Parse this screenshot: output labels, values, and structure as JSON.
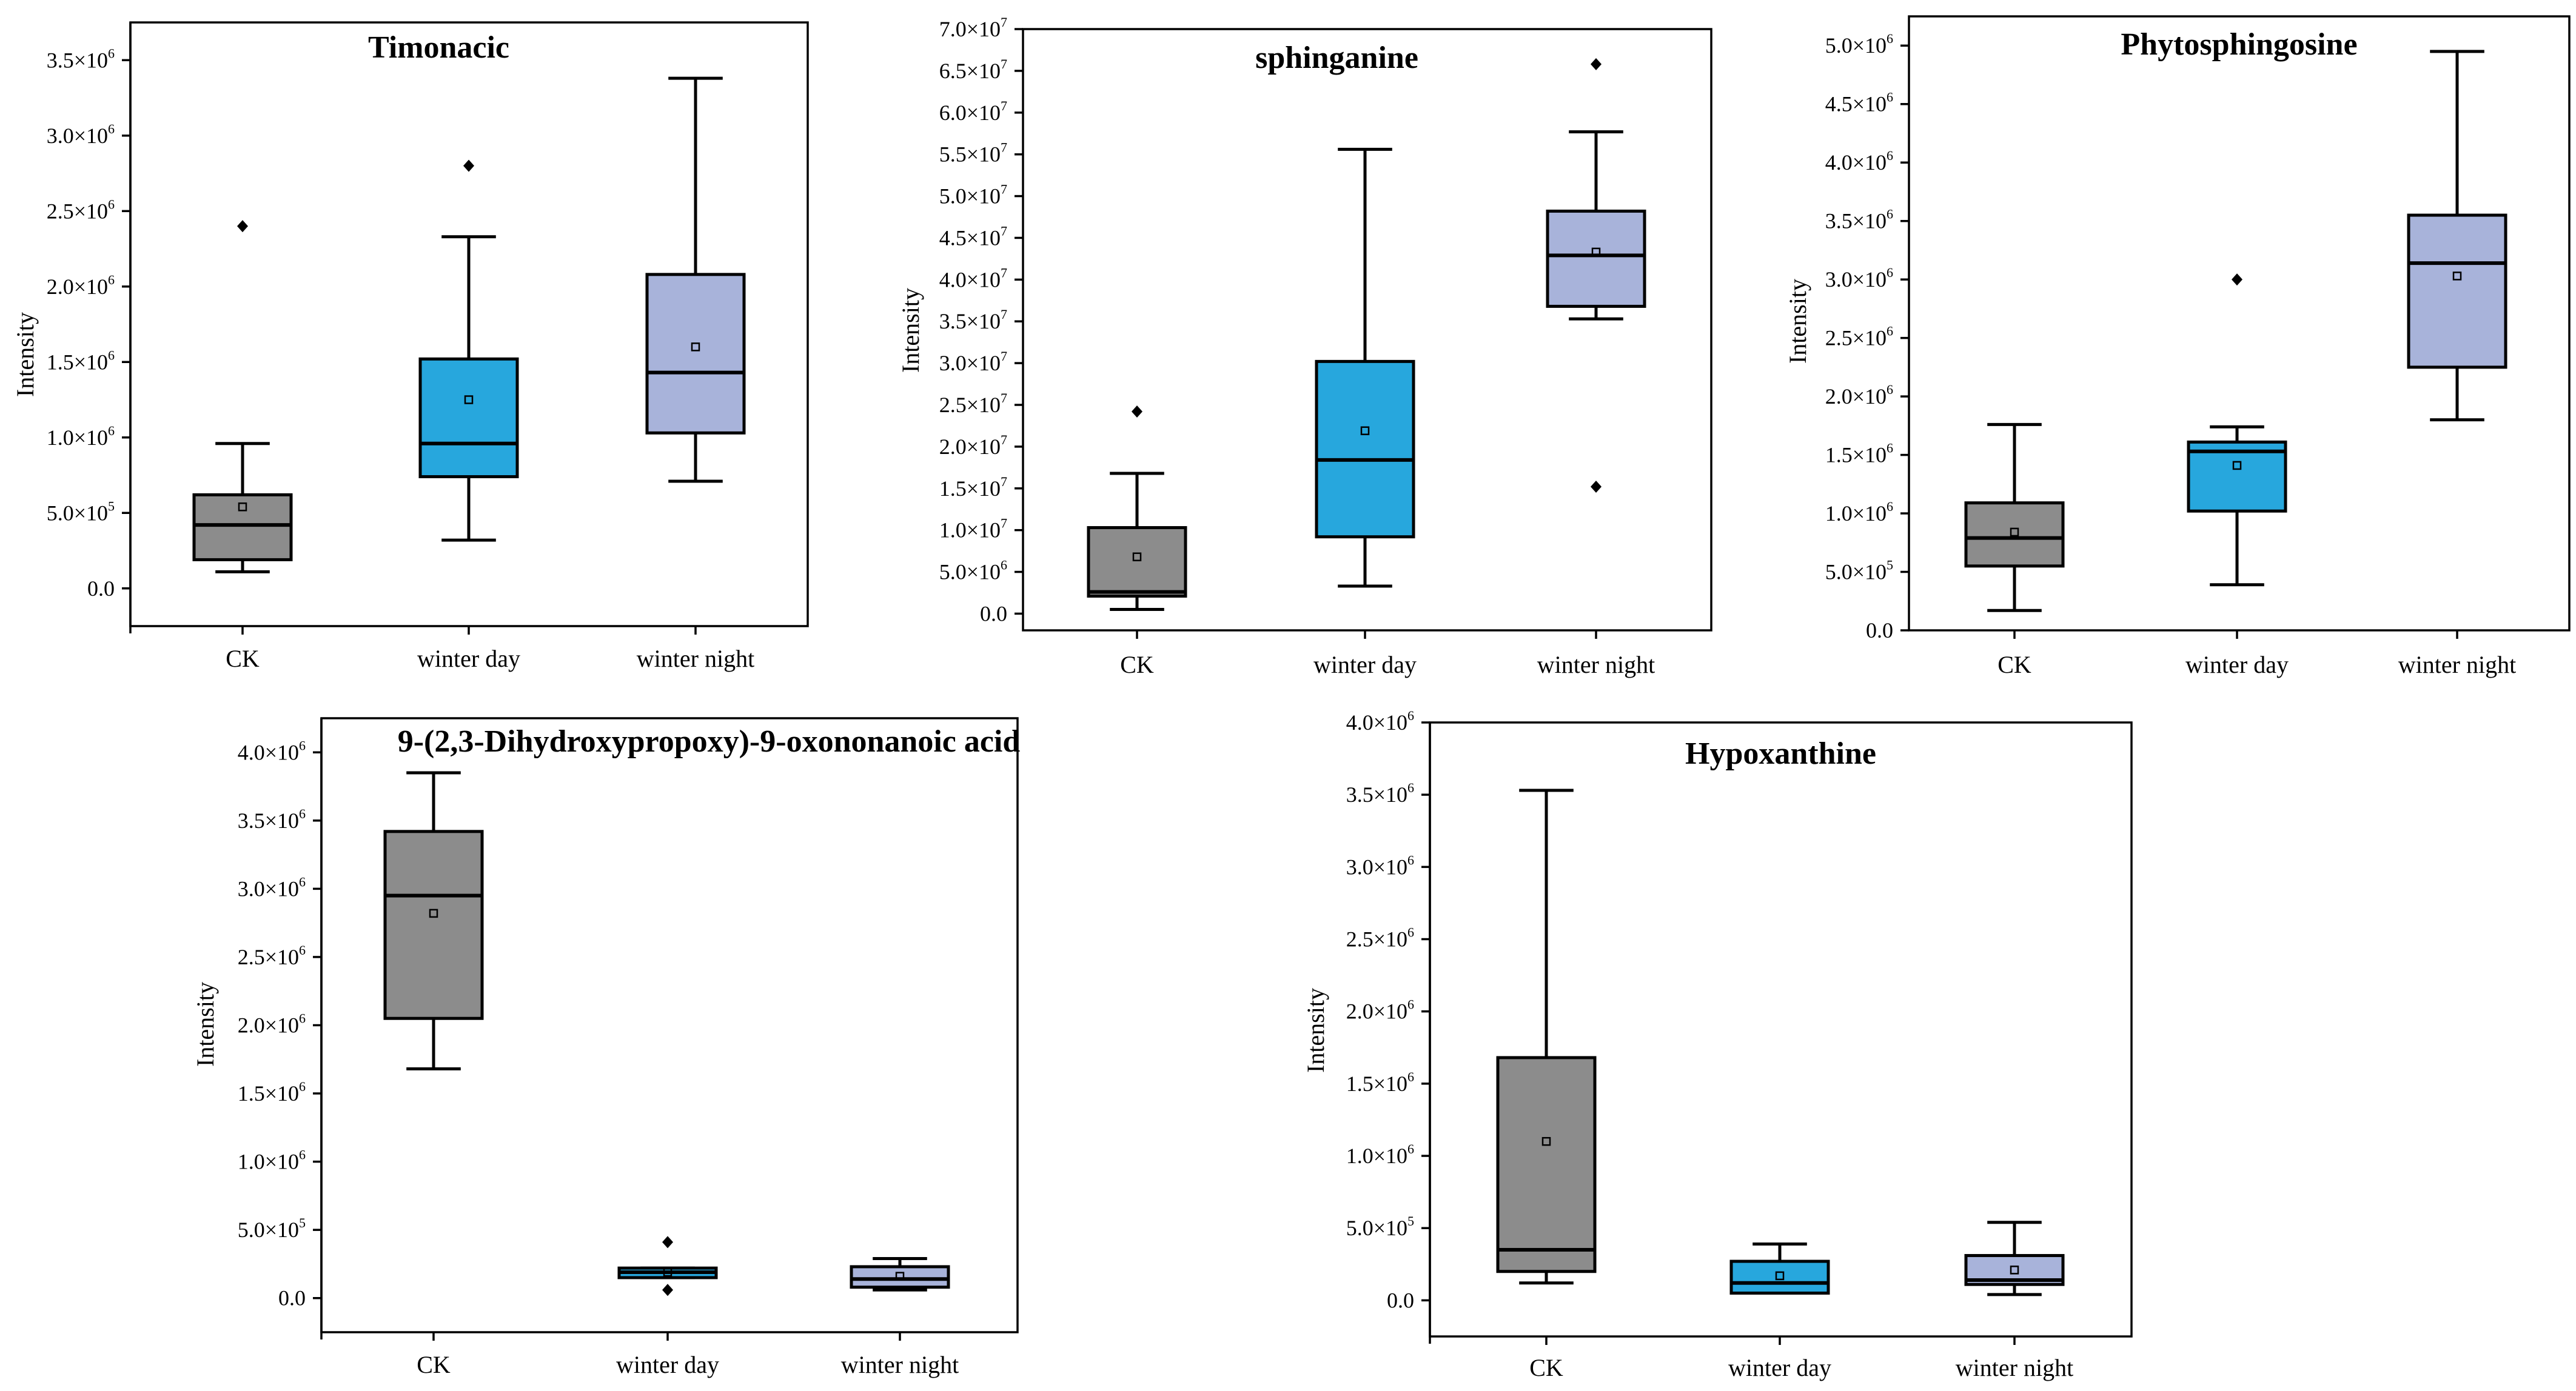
{
  "colors": {
    "CK": "#8c8c8c",
    "winter day": "#27a7dd",
    "winter night": "#a8b3da"
  },
  "chart_data": [
    {
      "type": "box",
      "title": "Timonacic",
      "ylabel": "Intensity",
      "categories": [
        "CK",
        "winter day",
        "winter night"
      ],
      "ylim": [
        -250000,
        3750000
      ],
      "yticks": [
        {
          "mant": "0.0",
          "exp": ""
        },
        {
          "mant": "5.0×10",
          "exp": "5"
        },
        {
          "mant": "1.0×10",
          "exp": "6"
        },
        {
          "mant": "1.5×10",
          "exp": "6"
        },
        {
          "mant": "2.0×10",
          "exp": "6"
        },
        {
          "mant": "2.5×10",
          "exp": "6"
        },
        {
          "mant": "3.0×10",
          "exp": "6"
        },
        {
          "mant": "3.5×10",
          "exp": "6"
        }
      ],
      "ytick_values": [
        0,
        500000,
        1000000,
        1500000,
        2000000,
        2500000,
        3000000,
        3500000
      ],
      "series": [
        {
          "name": "CK",
          "whisker_low": 110000,
          "q1": 190000,
          "median": 420000,
          "q3": 620000,
          "whisker_high": 960000,
          "mean": 540000,
          "outliers": [
            2400000
          ]
        },
        {
          "name": "winter day",
          "whisker_low": 320000,
          "q1": 740000,
          "median": 960000,
          "q3": 1520000,
          "whisker_high": 2330000,
          "mean": 1250000,
          "outliers": [
            2800000
          ]
        },
        {
          "name": "winter night",
          "whisker_low": 710000,
          "q1": 1030000,
          "median": 1430000,
          "q3": 2080000,
          "whisker_high": 3380000,
          "mean": 1600000,
          "outliers": []
        }
      ]
    },
    {
      "type": "box",
      "title": "sphinganine",
      "ylabel": "Intensity",
      "categories": [
        "CK",
        "winter day",
        "winter night"
      ],
      "ylim": [
        -2000000,
        70000000
      ],
      "yticks": [
        {
          "mant": "0.0",
          "exp": ""
        },
        {
          "mant": "5.0×10",
          "exp": "6"
        },
        {
          "mant": "1.0×10",
          "exp": "7"
        },
        {
          "mant": "1.5×10",
          "exp": "7"
        },
        {
          "mant": "2.0×10",
          "exp": "7"
        },
        {
          "mant": "2.5×10",
          "exp": "7"
        },
        {
          "mant": "3.0×10",
          "exp": "7"
        },
        {
          "mant": "3.5×10",
          "exp": "7"
        },
        {
          "mant": "4.0×10",
          "exp": "7"
        },
        {
          "mant": "4.5×10",
          "exp": "7"
        },
        {
          "mant": "5.0×10",
          "exp": "7"
        },
        {
          "mant": "5.5×10",
          "exp": "7"
        },
        {
          "mant": "6.0×10",
          "exp": "7"
        },
        {
          "mant": "6.5×10",
          "exp": "7"
        },
        {
          "mant": "7.0×10",
          "exp": "7"
        }
      ],
      "ytick_values": [
        0,
        5000000,
        10000000,
        15000000,
        20000000,
        25000000,
        30000000,
        35000000,
        40000000,
        45000000,
        50000000,
        55000000,
        60000000,
        65000000,
        70000000
      ],
      "series": [
        {
          "name": "CK",
          "whisker_low": 500000,
          "q1": 2100000,
          "median": 2600000,
          "q3": 10300000,
          "whisker_high": 16800000,
          "mean": 6800000,
          "outliers": [
            24200000
          ]
        },
        {
          "name": "winter day",
          "whisker_low": 3300000,
          "q1": 9200000,
          "median": 18400000,
          "q3": 30200000,
          "whisker_high": 55600000,
          "mean": 21900000,
          "outliers": []
        },
        {
          "name": "winter night",
          "whisker_low": 35300000,
          "q1": 36800000,
          "median": 42900000,
          "q3": 48200000,
          "whisker_high": 57700000,
          "mean": 43300000,
          "outliers": [
            65800000,
            15200000
          ]
        }
      ]
    },
    {
      "type": "box",
      "title": "Phytosphingosine",
      "ylabel": "Intensity",
      "categories": [
        "CK",
        "winter day",
        "winter night"
      ],
      "ylim": [
        0,
        5250000
      ],
      "yticks": [
        {
          "mant": "0.0",
          "exp": ""
        },
        {
          "mant": "5.0×10",
          "exp": "5"
        },
        {
          "mant": "1.0×10",
          "exp": "6"
        },
        {
          "mant": "1.5×10",
          "exp": "6"
        },
        {
          "mant": "2.0×10",
          "exp": "6"
        },
        {
          "mant": "2.5×10",
          "exp": "6"
        },
        {
          "mant": "3.0×10",
          "exp": "6"
        },
        {
          "mant": "3.5×10",
          "exp": "6"
        },
        {
          "mant": "4.0×10",
          "exp": "6"
        },
        {
          "mant": "4.5×10",
          "exp": "6"
        },
        {
          "mant": "5.0×10",
          "exp": "6"
        }
      ],
      "ytick_values": [
        0,
        500000,
        1000000,
        1500000,
        2000000,
        2500000,
        3000000,
        3500000,
        4000000,
        4500000,
        5000000
      ],
      "series": [
        {
          "name": "CK",
          "whisker_low": 170000,
          "q1": 550000,
          "median": 790000,
          "q3": 1090000,
          "whisker_high": 1760000,
          "mean": 840000,
          "outliers": []
        },
        {
          "name": "winter day",
          "whisker_low": 390000,
          "q1": 1020000,
          "median": 1530000,
          "q3": 1610000,
          "whisker_high": 1740000,
          "mean": 1410000,
          "outliers": [
            3000000
          ]
        },
        {
          "name": "winter night",
          "whisker_low": 1800000,
          "q1": 2250000,
          "median": 3140000,
          "q3": 3550000,
          "whisker_high": 4950000,
          "mean": 3030000,
          "outliers": []
        }
      ]
    },
    {
      "type": "box",
      "title": "9-(2,3-Dihydroxypropoxy)-9-oxononanoic acid",
      "ylabel": "Intensity",
      "categories": [
        "CK",
        "winter day",
        "winter night"
      ],
      "ylim": [
        -250000,
        4250000
      ],
      "yticks": [
        {
          "mant": "0.0",
          "exp": ""
        },
        {
          "mant": "5.0×10",
          "exp": "5"
        },
        {
          "mant": "1.0×10",
          "exp": "6"
        },
        {
          "mant": "1.5×10",
          "exp": "6"
        },
        {
          "mant": "2.0×10",
          "exp": "6"
        },
        {
          "mant": "2.5×10",
          "exp": "6"
        },
        {
          "mant": "3.0×10",
          "exp": "6"
        },
        {
          "mant": "3.5×10",
          "exp": "6"
        },
        {
          "mant": "4.0×10",
          "exp": "6"
        }
      ],
      "ytick_values": [
        0,
        500000,
        1000000,
        1500000,
        2000000,
        2500000,
        3000000,
        3500000,
        4000000
      ],
      "series": [
        {
          "name": "CK",
          "whisker_low": 1680000,
          "q1": 2050000,
          "median": 2950000,
          "q3": 3420000,
          "whisker_high": 3850000,
          "mean": 2820000,
          "outliers": []
        },
        {
          "name": "winter day",
          "whisker_low": 150000,
          "q1": 150000,
          "median": 190000,
          "q3": 220000,
          "whisker_high": 220000,
          "mean": 190000,
          "outliers": [
            410000,
            60000
          ]
        },
        {
          "name": "winter night",
          "whisker_low": 60000,
          "q1": 80000,
          "median": 140000,
          "q3": 230000,
          "whisker_high": 290000,
          "mean": 160000,
          "outliers": []
        }
      ]
    },
    {
      "type": "box",
      "title": "Hypoxanthine",
      "ylabel": "Intensity",
      "categories": [
        "CK",
        "winter day",
        "winter night"
      ],
      "ylim": [
        -250000,
        4000000
      ],
      "yticks": [
        {
          "mant": "0.0",
          "exp": ""
        },
        {
          "mant": "5.0×10",
          "exp": "5"
        },
        {
          "mant": "1.0×10",
          "exp": "6"
        },
        {
          "mant": "1.5×10",
          "exp": "6"
        },
        {
          "mant": "2.0×10",
          "exp": "6"
        },
        {
          "mant": "2.5×10",
          "exp": "6"
        },
        {
          "mant": "3.0×10",
          "exp": "6"
        },
        {
          "mant": "3.5×10",
          "exp": "6"
        },
        {
          "mant": "4.0×10",
          "exp": "6"
        }
      ],
      "ytick_values": [
        0,
        500000,
        1000000,
        1500000,
        2000000,
        2500000,
        3000000,
        3500000,
        4000000
      ],
      "series": [
        {
          "name": "CK",
          "whisker_low": 120000,
          "q1": 200000,
          "median": 350000,
          "q3": 1680000,
          "whisker_high": 3530000,
          "mean": 1100000,
          "outliers": []
        },
        {
          "name": "winter day",
          "whisker_low": 50000,
          "q1": 50000,
          "median": 120000,
          "q3": 270000,
          "whisker_high": 390000,
          "mean": 170000,
          "outliers": []
        },
        {
          "name": "winter night",
          "whisker_low": 40000,
          "q1": 110000,
          "median": 140000,
          "q3": 310000,
          "whisker_high": 540000,
          "mean": 210000,
          "outliers": []
        }
      ]
    }
  ]
}
